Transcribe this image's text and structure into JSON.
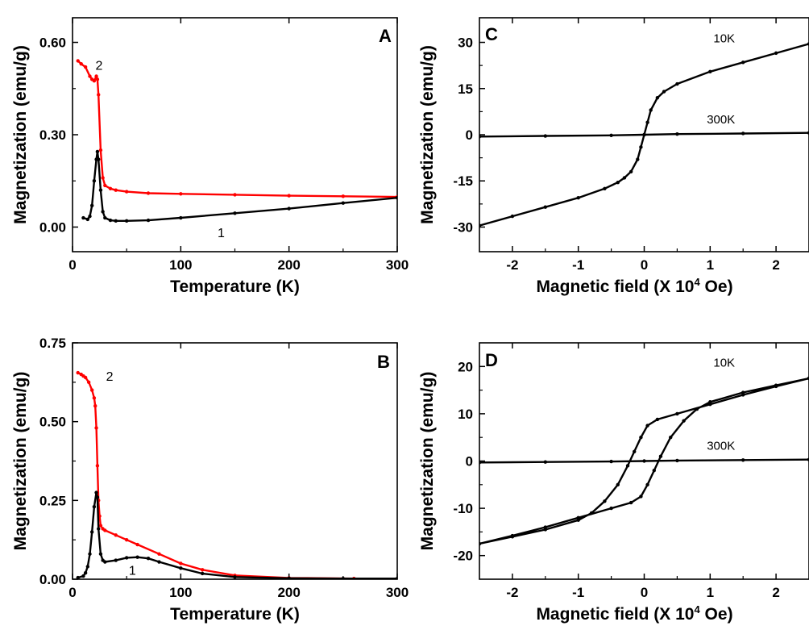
{
  "chart_data": [
    {
      "panel": "A",
      "type": "line",
      "xlabel": "Temperature (K)",
      "ylabel": "Magnetization (emu/g)",
      "xlim": [
        0,
        300
      ],
      "ylim": [
        -0.08,
        0.68
      ],
      "xticks": [
        0,
        100,
        200,
        300
      ],
      "yticks": [
        0.0,
        0.3,
        0.6
      ],
      "xtick_labels": [
        "0",
        "100",
        "200",
        "300"
      ],
      "ytick_labels": [
        "0.00",
        "0.30",
        "0.60"
      ],
      "series": [
        {
          "name": "2",
          "color": "#ff0000",
          "x": [
            5,
            8,
            12,
            16,
            18,
            20,
            22,
            23,
            24,
            26,
            28,
            30,
            35,
            40,
            50,
            70,
            100,
            150,
            200,
            250,
            300
          ],
          "y": [
            0.54,
            0.53,
            0.52,
            0.49,
            0.48,
            0.475,
            0.49,
            0.48,
            0.43,
            0.25,
            0.16,
            0.135,
            0.125,
            0.12,
            0.115,
            0.11,
            0.108,
            0.105,
            0.102,
            0.1,
            0.098
          ]
        },
        {
          "name": "1",
          "color": "#000000",
          "x": [
            10,
            14,
            16,
            18,
            20,
            22,
            23,
            24,
            26,
            28,
            30,
            35,
            40,
            50,
            70,
            100,
            150,
            200,
            250,
            300
          ],
          "y": [
            0.03,
            0.025,
            0.035,
            0.07,
            0.15,
            0.22,
            0.245,
            0.22,
            0.12,
            0.05,
            0.03,
            0.022,
            0.02,
            0.02,
            0.022,
            0.03,
            0.045,
            0.06,
            0.078,
            0.095
          ]
        }
      ],
      "annotations": [
        "2",
        "1"
      ]
    },
    {
      "panel": "B",
      "type": "line",
      "xlabel": "Temperature (K)",
      "ylabel": "Magnetization (emu/g)",
      "xlim": [
        0,
        300
      ],
      "ylim": [
        0,
        0.75
      ],
      "xticks": [
        0,
        100,
        200,
        300
      ],
      "yticks": [
        0.0,
        0.25,
        0.5,
        0.75
      ],
      "xtick_labels": [
        "0",
        "100",
        "200",
        "300"
      ],
      "ytick_labels": [
        "0.00",
        "0.25",
        "0.50",
        "0.75"
      ],
      "series": [
        {
          "name": "2",
          "color": "#ff0000",
          "x": [
            5,
            8,
            10,
            12,
            15,
            18,
            20,
            21,
            22,
            23,
            24,
            25,
            26,
            28,
            30,
            40,
            50,
            60,
            80,
            100,
            120,
            150,
            200,
            260
          ],
          "y": [
            0.655,
            0.65,
            0.645,
            0.64,
            0.625,
            0.6,
            0.575,
            0.55,
            0.48,
            0.36,
            0.25,
            0.2,
            0.17,
            0.16,
            0.155,
            0.14,
            0.125,
            0.11,
            0.08,
            0.05,
            0.03,
            0.012,
            0.004,
            0.002
          ]
        },
        {
          "name": "1",
          "color": "#000000",
          "x": [
            5,
            10,
            12,
            14,
            16,
            18,
            20,
            22,
            23,
            24,
            26,
            28,
            30,
            40,
            50,
            60,
            70,
            80,
            100,
            120,
            150,
            200,
            250,
            300
          ],
          "y": [
            0.005,
            0.01,
            0.02,
            0.04,
            0.08,
            0.15,
            0.23,
            0.275,
            0.26,
            0.16,
            0.08,
            0.06,
            0.055,
            0.06,
            0.068,
            0.07,
            0.066,
            0.055,
            0.035,
            0.018,
            0.007,
            0.003,
            0.002,
            0.002
          ]
        }
      ],
      "annotations": [
        "2",
        "1"
      ]
    },
    {
      "panel": "C",
      "type": "line",
      "xlabel": "Magnetic field (X 10",
      "xlabel_sup": "4",
      "xlabel_suffix": " Oe)",
      "ylabel": "Magnetization (emu/g)",
      "xlim": [
        -2.5,
        2.5
      ],
      "ylim": [
        -38,
        38
      ],
      "xticks": [
        -2,
        -1,
        0,
        1,
        2
      ],
      "yticks": [
        -30,
        -15,
        0,
        15,
        30
      ],
      "xtick_labels": [
        "-2",
        "-1",
        "0",
        "1",
        "2"
      ],
      "ytick_labels": [
        "-30",
        "-15",
        "0",
        "15",
        "30"
      ],
      "series": [
        {
          "name": "10K",
          "color": "#000000",
          "x": [
            -2.5,
            -2,
            -1.5,
            -1,
            -0.6,
            -0.4,
            -0.3,
            -0.2,
            -0.1,
            -0.05,
            0,
            0.05,
            0.1,
            0.2,
            0.3,
            0.5,
            1,
            1.5,
            2,
            2.5
          ],
          "y": [
            -29.5,
            -26.5,
            -23.5,
            -20.5,
            -17.5,
            -15.5,
            -14,
            -12,
            -8,
            -4,
            0,
            4,
            8,
            12,
            14,
            16.5,
            20.5,
            23.5,
            26.5,
            29.5
          ]
        },
        {
          "name": "300K",
          "color": "#000000",
          "x": [
            -2.5,
            -1.5,
            -0.5,
            0,
            0.5,
            1.5,
            2.5
          ],
          "y": [
            -0.6,
            -0.4,
            -0.2,
            0,
            0.2,
            0.4,
            0.6
          ]
        }
      ],
      "annotations": [
        "10K",
        "300K"
      ]
    },
    {
      "panel": "D",
      "type": "line",
      "xlabel": "Magnetic field (X 10",
      "xlabel_sup": "4",
      "xlabel_suffix": " Oe)",
      "ylabel": "Magnetization (emu/g)",
      "xlim": [
        -2.5,
        2.5
      ],
      "ylim": [
        -25,
        25
      ],
      "xticks": [
        -2,
        -1,
        0,
        1,
        2
      ],
      "yticks": [
        -20,
        -10,
        0,
        10,
        20
      ],
      "xtick_labels": [
        "-2",
        "-1",
        "0",
        "1",
        "2"
      ],
      "ytick_labels": [
        "-20",
        "-10",
        "0",
        "10",
        "20"
      ],
      "series": [
        {
          "name": "10K",
          "color": "#000000",
          "x": [
            2.5,
            2,
            1.5,
            1,
            0.5,
            0.2,
            0.05,
            -0.05,
            -0.15,
            -0.25,
            -0.4,
            -0.6,
            -0.8,
            -1,
            -1.5,
            -2,
            -2.5,
            -2,
            -1.5,
            -1,
            -0.5,
            -0.2,
            -0.05,
            0.05,
            0.15,
            0.25,
            0.4,
            0.6,
            0.8,
            1,
            1.5,
            2,
            2.5
          ],
          "y": [
            17.5,
            15.8,
            14,
            12,
            10,
            8.8,
            7.5,
            5,
            2,
            -1,
            -5,
            -8.5,
            -11,
            -12.5,
            -14.5,
            -16,
            -17.5,
            -15.8,
            -14,
            -12,
            -10,
            -8.8,
            -7.5,
            -5,
            -2,
            1,
            5,
            8.5,
            11,
            12.5,
            14.5,
            16,
            17.5
          ]
        },
        {
          "name": "300K",
          "color": "#000000",
          "x": [
            -2.5,
            -1.5,
            -0.5,
            0,
            0.5,
            1.5,
            2.5
          ],
          "y": [
            -0.3,
            -0.2,
            -0.1,
            0,
            0.1,
            0.2,
            0.3
          ]
        }
      ],
      "annotations": [
        "10K",
        "300K"
      ]
    }
  ]
}
